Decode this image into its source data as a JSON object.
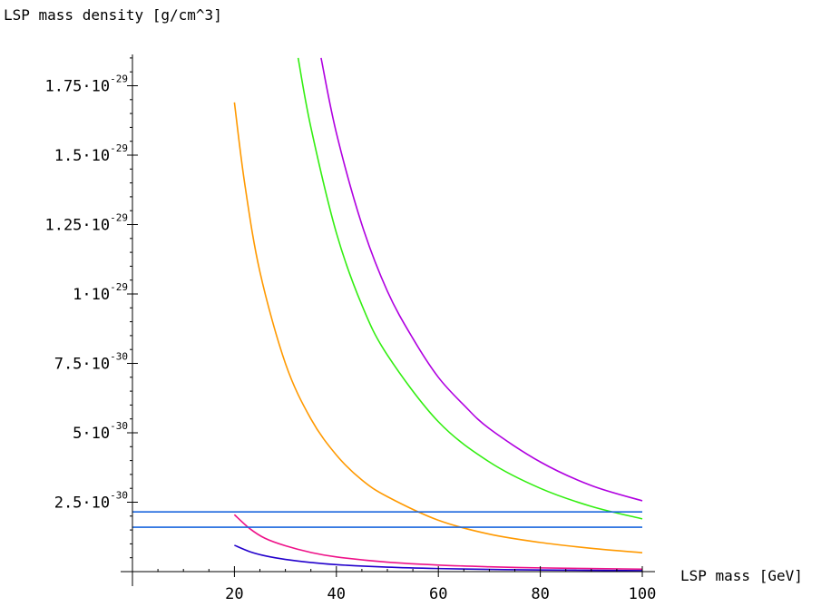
{
  "chart_data": {
    "type": "line",
    "xlabel": "LSP mass [GeV]",
    "ylabel": "LSP mass density [g/cm^3]",
    "xlim": [
      0,
      100
    ],
    "ylim": [
      0,
      1.85e-29
    ],
    "x_ticks": [
      {
        "value": 20,
        "label": "20"
      },
      {
        "value": 40,
        "label": "40"
      },
      {
        "value": 60,
        "label": "60"
      },
      {
        "value": 80,
        "label": "80"
      },
      {
        "value": 100,
        "label": "100"
      }
    ],
    "y_ticks": [
      {
        "value": 2.5e-30,
        "mantissa": "2.5·10",
        "exponent": "-30"
      },
      {
        "value": 5e-30,
        "mantissa": "5·10",
        "exponent": "-30"
      },
      {
        "value": 7.5e-30,
        "mantissa": "7.5·10",
        "exponent": "-30"
      },
      {
        "value": 1e-29,
        "mantissa": "1·10",
        "exponent": "-29"
      },
      {
        "value": 1.25e-29,
        "mantissa": "1.25·10",
        "exponent": "-29"
      },
      {
        "value": 1.5e-29,
        "mantissa": "1.5·10",
        "exponent": "-29"
      },
      {
        "value": 1.75e-29,
        "mantissa": "1.75·10",
        "exponent": "-29"
      }
    ],
    "grid": false,
    "series": [
      {
        "color": "#b000e0",
        "x": [
          37,
          40,
          45,
          50,
          55,
          60,
          65,
          70,
          80,
          90,
          100
        ],
        "y": [
          1.85e-29,
          1.58e-29,
          1.25e-29,
          1.01e-29,
          8.4e-30,
          7e-30,
          6e-30,
          5.15e-30,
          3.95e-30,
          3.1e-30,
          2.55e-30
        ]
      },
      {
        "color": "#33ee11",
        "x": [
          32.5,
          35,
          40,
          45,
          50,
          60,
          70,
          80,
          90,
          100
        ],
        "y": [
          1.85e-29,
          1.6e-29,
          1.22e-29,
          9.6e-30,
          7.8e-30,
          5.4e-30,
          3.95e-30,
          3e-30,
          2.35e-30,
          1.9e-30
        ]
      },
      {
        "color": "#ff9900",
        "x": [
          20,
          22,
          25,
          30,
          35,
          40,
          45,
          50,
          60,
          70,
          80,
          90,
          100
        ],
        "y": [
          1.69e-29,
          1.4e-29,
          1.08e-29,
          7.5e-30,
          5.5e-30,
          4.2e-30,
          3.3e-30,
          2.7e-30,
          1.85e-30,
          1.35e-30,
          1.05e-30,
          8.4e-31,
          6.8e-31
        ]
      },
      {
        "color": "#ee1188",
        "x": [
          20,
          23,
          26,
          30,
          35,
          40,
          50,
          60,
          70,
          80,
          100
        ],
        "y": [
          2.05e-30,
          1.55e-30,
          1.2e-30,
          9.3e-31,
          6.9e-31,
          5.3e-31,
          3.4e-31,
          2.35e-31,
          1.75e-31,
          1.35e-31,
          9e-32
        ]
      },
      {
        "color": "#2200cc",
        "x": [
          20,
          23,
          26,
          30,
          35,
          40,
          50,
          60,
          70,
          80,
          100
        ],
        "y": [
          9.5e-31,
          7.2e-31,
          5.7e-31,
          4.4e-31,
          3.3e-31,
          2.5e-31,
          1.6e-31,
          1.1e-31,
          8e-32,
          6e-32,
          3.5e-32
        ]
      },
      {
        "color": "#1a66dd",
        "x": [
          0,
          100
        ],
        "y": [
          2.15e-30,
          2.15e-30
        ]
      },
      {
        "color": "#1a66dd",
        "x": [
          0,
          100
        ],
        "y": [
          1.6e-30,
          1.6e-30
        ]
      }
    ]
  }
}
